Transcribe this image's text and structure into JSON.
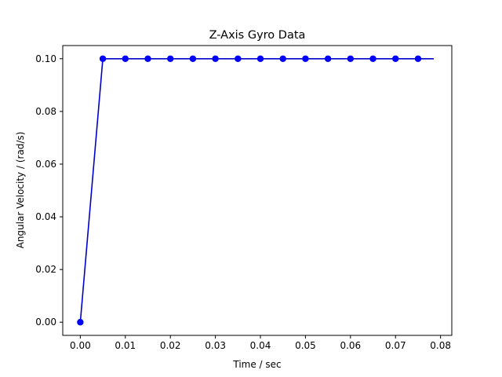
{
  "chart_data": {
    "type": "line",
    "title": "Z-Axis Gyro Data",
    "xlabel": "Time / sec",
    "ylabel": "Angular Velocity / (rad/s)",
    "xlim": [
      -0.0039,
      0.0825
    ],
    "ylim": [
      -0.005,
      0.105
    ],
    "xticks": [
      0.0,
      0.01,
      0.02,
      0.03,
      0.04,
      0.05,
      0.06,
      0.07,
      0.08
    ],
    "xtick_labels": [
      "0.00",
      "0.01",
      "0.02",
      "0.03",
      "0.04",
      "0.05",
      "0.06",
      "0.07",
      "0.08"
    ],
    "yticks": [
      0.0,
      0.02,
      0.04,
      0.06,
      0.08,
      0.1
    ],
    "ytick_labels": [
      "0.00",
      "0.02",
      "0.04",
      "0.06",
      "0.08",
      "0.10"
    ],
    "grid": false,
    "legend": false,
    "series": [
      {
        "color": "#0000cc",
        "marker_color": "#0000ff",
        "line_x": [
          0.0,
          0.005,
          0.01,
          0.015,
          0.02,
          0.025,
          0.03,
          0.035,
          0.04,
          0.045,
          0.05,
          0.055,
          0.06,
          0.065,
          0.07,
          0.075,
          0.0785
        ],
        "line_y": [
          0.0,
          0.1,
          0.1,
          0.1,
          0.1,
          0.1,
          0.1,
          0.1,
          0.1,
          0.1,
          0.1,
          0.1,
          0.1,
          0.1,
          0.1,
          0.1,
          0.1
        ],
        "points_x": [
          0.0,
          0.005,
          0.01,
          0.015,
          0.02,
          0.025,
          0.03,
          0.035,
          0.04,
          0.045,
          0.05,
          0.055,
          0.06,
          0.065,
          0.07,
          0.075
        ],
        "points_y": [
          0.0,
          0.1,
          0.1,
          0.1,
          0.1,
          0.1,
          0.1,
          0.1,
          0.1,
          0.1,
          0.1,
          0.1,
          0.1,
          0.1,
          0.1,
          0.1
        ]
      }
    ]
  }
}
